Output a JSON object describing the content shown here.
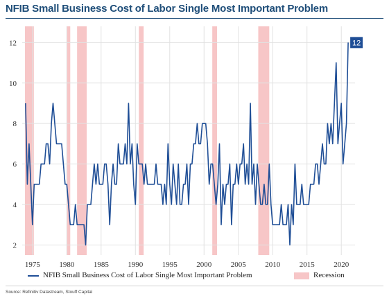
{
  "title": "NFIB Small Business Cost of Labor Single Most Important Problem",
  "source": "Source: Refinitiv Datastream, Stouff Capital",
  "colors": {
    "title": "#1f4e79",
    "line": "#1f4e96",
    "recession": "#f7c6c7",
    "badge": "#1f4e96",
    "grid": "#e2e2e2"
  },
  "chart_data": {
    "type": "line",
    "x_axis": {
      "ticks": [
        "1975",
        "1980",
        "1985",
        "1990",
        "1995",
        "2000",
        "2005",
        "2010",
        "2015",
        "2020"
      ],
      "range": [
        1973.5,
        2022
      ]
    },
    "y_axis": {
      "ticks": [
        "2",
        "4",
        "6",
        "8",
        "10",
        "12"
      ],
      "range": [
        1.5,
        12.8
      ]
    },
    "grid": true,
    "legend_position": "bottom",
    "end_label": "12",
    "series": [
      {
        "name": "NFIB Small Business Cost of Labor Single Most Important Problem",
        "points": [
          [
            1974.0,
            9
          ],
          [
            1974.25,
            5
          ],
          [
            1974.5,
            7
          ],
          [
            1974.75,
            5
          ],
          [
            1975.0,
            3
          ],
          [
            1975.25,
            5
          ],
          [
            1975.5,
            5
          ],
          [
            1975.75,
            5
          ],
          [
            1976.0,
            5
          ],
          [
            1976.25,
            6
          ],
          [
            1976.5,
            6
          ],
          [
            1976.75,
            6
          ],
          [
            1977.0,
            7
          ],
          [
            1977.25,
            7
          ],
          [
            1977.5,
            6
          ],
          [
            1977.75,
            8
          ],
          [
            1978.0,
            9
          ],
          [
            1978.25,
            8
          ],
          [
            1978.5,
            7
          ],
          [
            1978.75,
            7
          ],
          [
            1979.0,
            7
          ],
          [
            1979.25,
            7
          ],
          [
            1979.5,
            6
          ],
          [
            1979.75,
            5
          ],
          [
            1980.0,
            5
          ],
          [
            1980.25,
            4
          ],
          [
            1980.5,
            3
          ],
          [
            1980.75,
            3
          ],
          [
            1981.0,
            3
          ],
          [
            1981.25,
            4
          ],
          [
            1981.5,
            3
          ],
          [
            1981.75,
            3
          ],
          [
            1982.0,
            3
          ],
          [
            1982.25,
            3
          ],
          [
            1982.5,
            3
          ],
          [
            1982.75,
            2
          ],
          [
            1983.0,
            4
          ],
          [
            1983.25,
            4
          ],
          [
            1983.5,
            4
          ],
          [
            1983.75,
            5
          ],
          [
            1984.0,
            6
          ],
          [
            1984.25,
            5
          ],
          [
            1984.5,
            6
          ],
          [
            1984.75,
            5
          ],
          [
            1985.0,
            5
          ],
          [
            1985.25,
            5
          ],
          [
            1985.5,
            6
          ],
          [
            1985.75,
            6
          ],
          [
            1986.0,
            5
          ],
          [
            1986.25,
            3
          ],
          [
            1986.5,
            5
          ],
          [
            1986.75,
            6
          ],
          [
            1987.0,
            5
          ],
          [
            1987.25,
            5
          ],
          [
            1987.5,
            7
          ],
          [
            1987.75,
            6
          ],
          [
            1988.0,
            6
          ],
          [
            1988.25,
            6
          ],
          [
            1988.5,
            7
          ],
          [
            1988.75,
            6
          ],
          [
            1989.0,
            9
          ],
          [
            1989.25,
            6
          ],
          [
            1989.5,
            7
          ],
          [
            1989.75,
            5
          ],
          [
            1990.0,
            4
          ],
          [
            1990.25,
            7
          ],
          [
            1990.5,
            6
          ],
          [
            1990.75,
            6
          ],
          [
            1991.0,
            6
          ],
          [
            1991.25,
            5
          ],
          [
            1991.5,
            6
          ],
          [
            1991.75,
            5
          ],
          [
            1992.0,
            5
          ],
          [
            1992.25,
            5
          ],
          [
            1992.5,
            5
          ],
          [
            1992.75,
            5
          ],
          [
            1993.0,
            6
          ],
          [
            1993.25,
            5
          ],
          [
            1993.5,
            5
          ],
          [
            1993.75,
            5
          ],
          [
            1994.0,
            4
          ],
          [
            1994.25,
            5
          ],
          [
            1994.5,
            4
          ],
          [
            1994.75,
            7
          ],
          [
            1995.0,
            5
          ],
          [
            1995.25,
            4
          ],
          [
            1995.5,
            6
          ],
          [
            1995.75,
            5
          ],
          [
            1996.0,
            4
          ],
          [
            1996.25,
            6
          ],
          [
            1996.5,
            4
          ],
          [
            1996.75,
            4
          ],
          [
            1997.0,
            5
          ],
          [
            1997.25,
            5
          ],
          [
            1997.5,
            6
          ],
          [
            1997.75,
            4
          ],
          [
            1998.0,
            6
          ],
          [
            1998.25,
            6
          ],
          [
            1998.5,
            7
          ],
          [
            1998.75,
            7
          ],
          [
            1999.0,
            8
          ],
          [
            1999.25,
            7
          ],
          [
            1999.5,
            7
          ],
          [
            1999.75,
            8
          ],
          [
            2000.0,
            8
          ],
          [
            2000.25,
            8
          ],
          [
            2000.5,
            7
          ],
          [
            2000.75,
            5
          ],
          [
            2001.0,
            6
          ],
          [
            2001.25,
            6
          ],
          [
            2001.5,
            5
          ],
          [
            2001.75,
            4
          ],
          [
            2002.0,
            5
          ],
          [
            2002.25,
            7
          ],
          [
            2002.5,
            3
          ],
          [
            2002.75,
            5
          ],
          [
            2003.0,
            4
          ],
          [
            2003.25,
            5
          ],
          [
            2003.5,
            5
          ],
          [
            2003.75,
            6
          ],
          [
            2004.0,
            3
          ],
          [
            2004.25,
            5
          ],
          [
            2004.5,
            5
          ],
          [
            2004.75,
            6
          ],
          [
            2005.0,
            5
          ],
          [
            2005.25,
            6
          ],
          [
            2005.5,
            6
          ],
          [
            2005.75,
            7
          ],
          [
            2006.0,
            5
          ],
          [
            2006.25,
            6
          ],
          [
            2006.5,
            5
          ],
          [
            2006.75,
            9
          ],
          [
            2007.0,
            5
          ],
          [
            2007.25,
            6
          ],
          [
            2007.5,
            4
          ],
          [
            2007.75,
            6
          ],
          [
            2008.0,
            5
          ],
          [
            2008.25,
            4
          ],
          [
            2008.5,
            4
          ],
          [
            2008.75,
            5
          ],
          [
            2009.0,
            4
          ],
          [
            2009.25,
            4
          ],
          [
            2009.5,
            6
          ],
          [
            2009.75,
            4
          ],
          [
            2010.0,
            3
          ],
          [
            2010.25,
            3
          ],
          [
            2010.5,
            3
          ],
          [
            2010.75,
            3
          ],
          [
            2011.0,
            3
          ],
          [
            2011.25,
            4
          ],
          [
            2011.5,
            3
          ],
          [
            2011.75,
            3
          ],
          [
            2012.0,
            3
          ],
          [
            2012.25,
            4
          ],
          [
            2012.5,
            2
          ],
          [
            2012.75,
            4
          ],
          [
            2013.0,
            3
          ],
          [
            2013.25,
            6
          ],
          [
            2013.5,
            4
          ],
          [
            2013.75,
            4
          ],
          [
            2014.0,
            4
          ],
          [
            2014.25,
            5
          ],
          [
            2014.5,
            4
          ],
          [
            2014.75,
            4
          ],
          [
            2015.0,
            4
          ],
          [
            2015.25,
            4
          ],
          [
            2015.5,
            5
          ],
          [
            2015.75,
            5
          ],
          [
            2016.0,
            5
          ],
          [
            2016.25,
            6
          ],
          [
            2016.5,
            6
          ],
          [
            2016.75,
            5
          ],
          [
            2017.0,
            6
          ],
          [
            2017.25,
            7
          ],
          [
            2017.5,
            6
          ],
          [
            2017.75,
            6
          ],
          [
            2018.0,
            8
          ],
          [
            2018.25,
            7
          ],
          [
            2018.5,
            8
          ],
          [
            2018.75,
            7
          ],
          [
            2019.0,
            9
          ],
          [
            2019.25,
            11
          ],
          [
            2019.5,
            7
          ],
          [
            2019.75,
            8
          ],
          [
            2020.0,
            9
          ],
          [
            2020.25,
            6
          ],
          [
            2020.5,
            7
          ],
          [
            2020.75,
            8
          ],
          [
            2021.0,
            12
          ]
        ]
      }
    ],
    "recessions": {
      "name": "Recession",
      "periods": [
        [
          1973.9,
          1975.2
        ],
        [
          1980.0,
          1980.5
        ],
        [
          1981.5,
          1982.9
        ],
        [
          1990.5,
          1991.2
        ],
        [
          2001.2,
          2001.9
        ],
        [
          2007.9,
          2009.5
        ]
      ]
    }
  }
}
